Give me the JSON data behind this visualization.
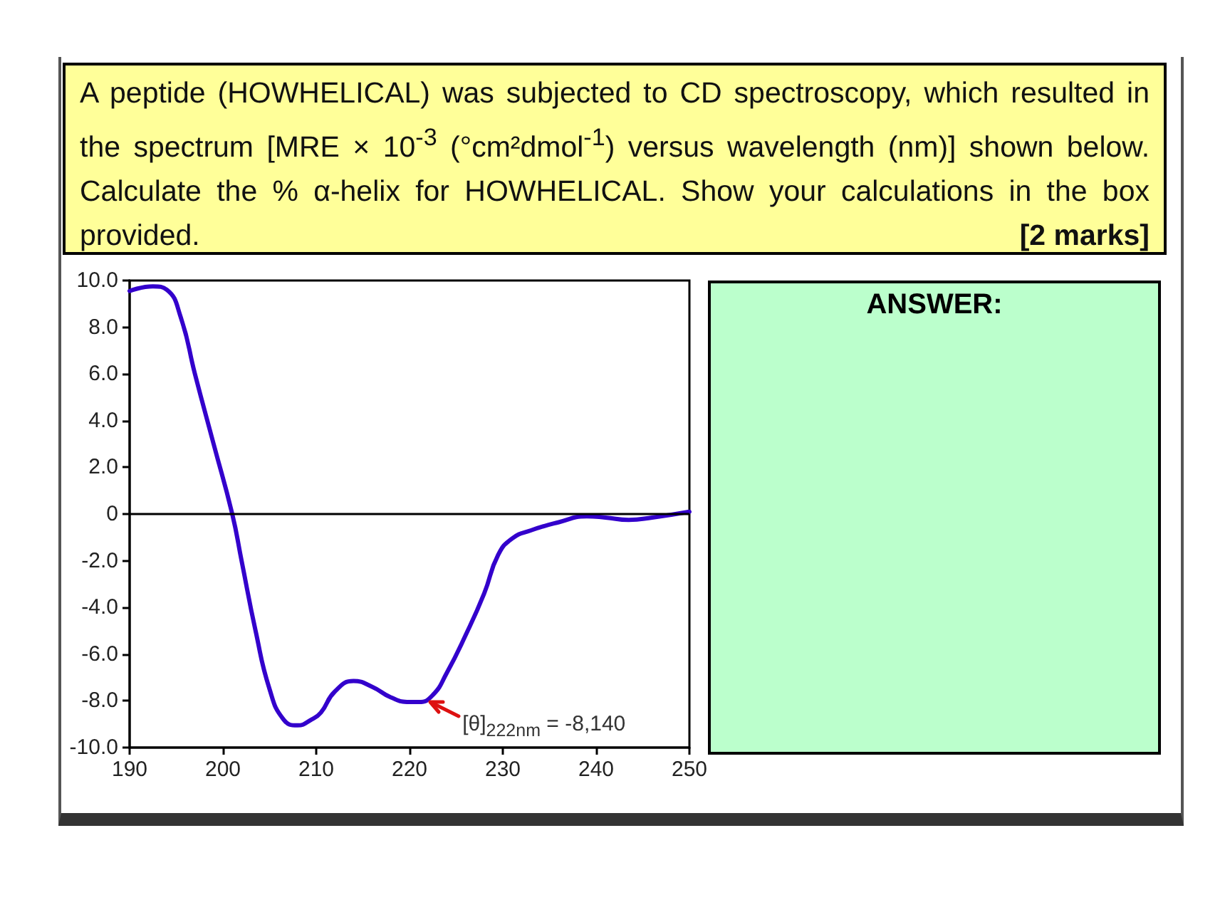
{
  "chart_data": {
    "type": "line",
    "title": "A peptide (HOWHELICAL) was subjected to CD spectroscopy, which resulted in the spectrum [MRE × 10$^{-3}$ (°cm²dmol$^{-1}$) versus wavelength (nm)] shown below. Calculate the % α-helix for HOWHELICAL. Show your calculations in the box provided.",
    "annotations": [
      "[2 marks]",
      "ANSWER:",
      {
        "text": "[θ]$_{222nm}$ = -8,140",
        "x": 222,
        "y": -8.14
      }
    ],
    "x": [
      190,
      192.5,
      194,
      195.5,
      197,
      199,
      201,
      202,
      203.5,
      205,
      206.5,
      208,
      209.5,
      210.5,
      212,
      214,
      216,
      218,
      220,
      221,
      222.5,
      224,
      226,
      228,
      229.5,
      231,
      233,
      236,
      239,
      241,
      243.5,
      246,
      250
    ],
    "series": [
      {
        "color": "#3300cc",
        "values": [
          9.55,
          9.75,
          9.6,
          8.4,
          6.0,
          3.0,
          0,
          -2.0,
          -5.0,
          -7.5,
          -8.8,
          -9.05,
          -8.8,
          -8.5,
          -7.6,
          -7.15,
          -7.4,
          -7.85,
          -8.05,
          -8.05,
          -7.75,
          -6.8,
          -5.2,
          -3.4,
          -1.75,
          -1.05,
          -0.7,
          -0.35,
          -0.1,
          -0.15,
          -0.25,
          -0.15,
          0.1
        ]
      }
    ],
    "xlim": [
      190,
      250
    ],
    "xticks": [
      190,
      200,
      210,
      220,
      230,
      240,
      250
    ],
    "ylim": [
      -10,
      10
    ],
    "yticks": [
      {
        "value": -10,
        "label": "-10.0"
      },
      {
        "value": -8,
        "label": "-8.0"
      },
      {
        "value": -6,
        "label": "-6.0"
      },
      {
        "value": -4,
        "label": "-4.0"
      },
      {
        "value": -2,
        "label": "-2.0"
      },
      0,
      {
        "value": 2,
        "label": "2.0"
      },
      {
        "value": 4,
        "label": "4.0"
      },
      {
        "value": 6,
        "label": "6.0"
      },
      {
        "value": 8,
        "label": "8.0"
      },
      {
        "value": 10,
        "label": "10.0"
      }
    ],
    "ref_lines": [
      {
        "axis": "y",
        "value": 0,
        "color": "#000000"
      }
    ],
    "grid": false,
    "marker": "none",
    "line_style": "solid"
  }
}
